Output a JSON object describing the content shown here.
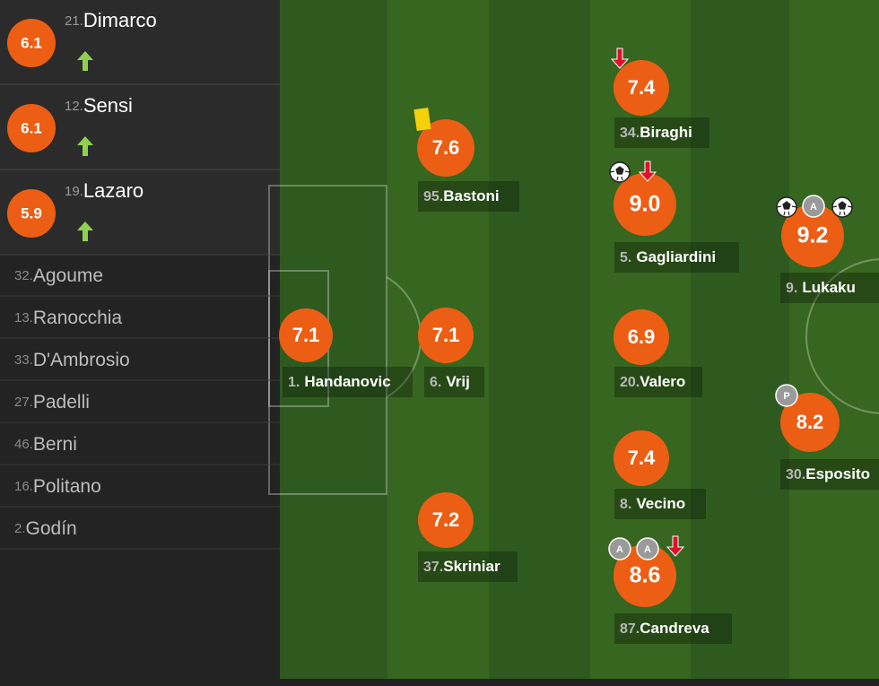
{
  "substitutes": [
    {
      "number": "21.",
      "name": "Dimarco",
      "rating": "6.1"
    },
    {
      "number": "12.",
      "name": "Sensi",
      "rating": "6.1"
    },
    {
      "number": "19.",
      "name": "Lazaro",
      "rating": "5.9"
    }
  ],
  "unused": [
    {
      "number": "32.",
      "name": "Agoume"
    },
    {
      "number": "13.",
      "name": "Ranocchia"
    },
    {
      "number": "33.",
      "name": "D'Ambrosio"
    },
    {
      "number": "27.",
      "name": "Padelli"
    },
    {
      "number": "46.",
      "name": "Berni"
    },
    {
      "number": "16.",
      "name": "Politano"
    },
    {
      "number": "2.",
      "name": "Godín"
    }
  ],
  "players": [
    {
      "number": "95.",
      "name": "Bastoni",
      "rating": "7.6"
    },
    {
      "number": "1.",
      "name": "Handanovic",
      "rating": "7.1"
    },
    {
      "number": "6.",
      "name": "Vrij",
      "rating": "7.1"
    },
    {
      "number": "37.",
      "name": "Skriniar",
      "rating": "7.2"
    },
    {
      "number": "34.",
      "name": "Biraghi",
      "rating": "7.4"
    },
    {
      "number": "5.",
      "name": "Gagliardini",
      "rating": "9.0"
    },
    {
      "number": "20.",
      "name": "Valero",
      "rating": "6.9"
    },
    {
      "number": "8.",
      "name": "Vecino",
      "rating": "7.4"
    },
    {
      "number": "87.",
      "name": "Candreva",
      "rating": "8.6",
      "badges": [
        "A",
        "A"
      ]
    },
    {
      "number": "9.",
      "name": "Lukaku",
      "rating": "9.2",
      "badges": [
        "A"
      ]
    },
    {
      "number": "30.",
      "name": "Esposito",
      "rating": "8.2",
      "badges": [
        "P"
      ]
    }
  ]
}
